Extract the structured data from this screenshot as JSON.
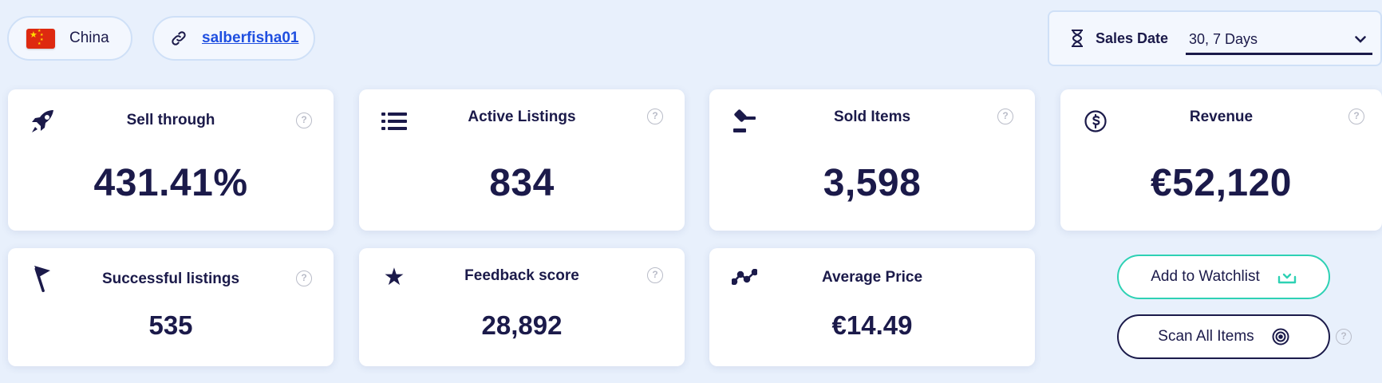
{
  "filters": {
    "country": {
      "flag_icon": "china-flag-icon",
      "label": "China"
    },
    "seller": {
      "icon": "link-icon",
      "label": "salberfisha01"
    },
    "sales_date": {
      "icon": "hourglass-icon",
      "label": "Sales Date",
      "value": "30, 7 Days",
      "chevron_icon": "chevron-down-icon"
    }
  },
  "metrics": {
    "sell_through": {
      "title": "Sell through",
      "value": "431.41%",
      "icon": "rocket-icon"
    },
    "active_listings": {
      "title": "Active Listings",
      "value": "834",
      "icon": "list-icon"
    },
    "sold_items": {
      "title": "Sold Items",
      "value": "3,598",
      "icon": "gavel-icon"
    },
    "revenue": {
      "title": "Revenue",
      "value": "€52,120",
      "icon": "dollar-circle-icon"
    },
    "successful_listings": {
      "title": "Successful listings",
      "value": "535",
      "icon": "flag-icon"
    },
    "feedback_score": {
      "title": "Feedback score",
      "value": "28,892",
      "icon": "star-icon"
    },
    "average_price": {
      "title": "Average Price",
      "value": "€14.49",
      "icon": "trend-line-icon"
    }
  },
  "help_icon_glyph": "?",
  "actions": {
    "add_to_watchlist": {
      "label": "Add to Watchlist",
      "icon": "inbox-download-icon"
    },
    "scan_all_items": {
      "label": "Scan All Items",
      "icon": "target-icon"
    }
  },
  "colors": {
    "background": "#e8f0fc",
    "text": "#1b1a4a",
    "link": "#1f4fe0",
    "accent_teal": "#2ed1b4",
    "flag_red": "#de2910",
    "flag_yellow": "#ffde00"
  }
}
